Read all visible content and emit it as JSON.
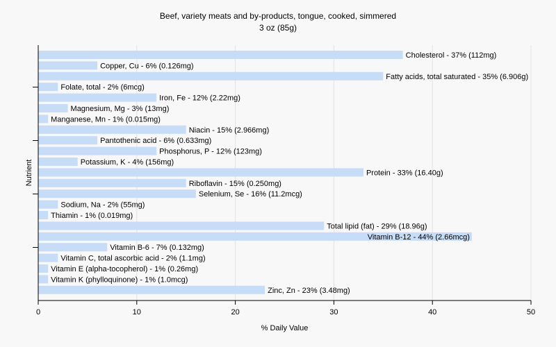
{
  "chart_data": {
    "type": "bar",
    "orientation": "horizontal",
    "title": "Beef, variety meats and by-products, tongue, cooked, simmered",
    "subtitle": "3 oz (85g)",
    "xlabel": "% Daily Value",
    "ylabel": "Nutrient",
    "xlim": [
      0,
      50
    ],
    "xticks": [
      0,
      10,
      20,
      30,
      40,
      50
    ],
    "grid": true,
    "legend": "none",
    "bar_color": "#c7dcf7",
    "categories": [
      "Cholesterol",
      "Copper, Cu",
      "Fatty acids, total saturated",
      "Folate, total",
      "Iron, Fe",
      "Magnesium, Mg",
      "Manganese, Mn",
      "Niacin",
      "Pantothenic acid",
      "Phosphorus, P",
      "Potassium, K",
      "Protein",
      "Riboflavin",
      "Selenium, Se",
      "Sodium, Na",
      "Thiamin",
      "Total lipid (fat)",
      "Vitamin B-12",
      "Vitamin B-6",
      "Vitamin C, total ascorbic acid",
      "Vitamin E (alpha-tocopherol)",
      "Vitamin K (phylloquinone)",
      "Zinc, Zn"
    ],
    "values": [
      37,
      6,
      35,
      2,
      12,
      3,
      1,
      15,
      6,
      12,
      4,
      33,
      15,
      16,
      2,
      1,
      29,
      44,
      7,
      2,
      1,
      1,
      23
    ],
    "labels": [
      "Cholesterol - 37% (112mg)",
      "Copper, Cu - 6% (0.126mg)",
      "Fatty acids, total saturated - 35% (6.906g)",
      "Folate, total - 2% (6mcg)",
      "Iron, Fe - 12% (2.22mg)",
      "Magnesium, Mg - 3% (13mg)",
      "Manganese, Mn - 1% (0.015mg)",
      "Niacin - 15% (2.966mg)",
      "Pantothenic acid - 6% (0.633mg)",
      "Phosphorus, P - 12% (123mg)",
      "Potassium, K - 4% (156mg)",
      "Protein - 33% (16.40g)",
      "Riboflavin - 15% (0.250mg)",
      "Selenium, Se - 16% (11.2mcg)",
      "Sodium, Na - 2% (55mg)",
      "Thiamin - 1% (0.019mg)",
      "Total lipid (fat) - 29% (18.96g)",
      "Vitamin B-12 - 44% (2.66mcg)",
      "Vitamin B-6 - 7% (0.132mg)",
      "Vitamin C, total ascorbic acid - 2% (1.1mg)",
      "Vitamin E (alpha-tocopherol) - 1% (0.26mg)",
      "Vitamin K (phylloquinone) - 1% (1.0mcg)",
      "Zinc, Zn - 23% (3.48mg)"
    ]
  }
}
